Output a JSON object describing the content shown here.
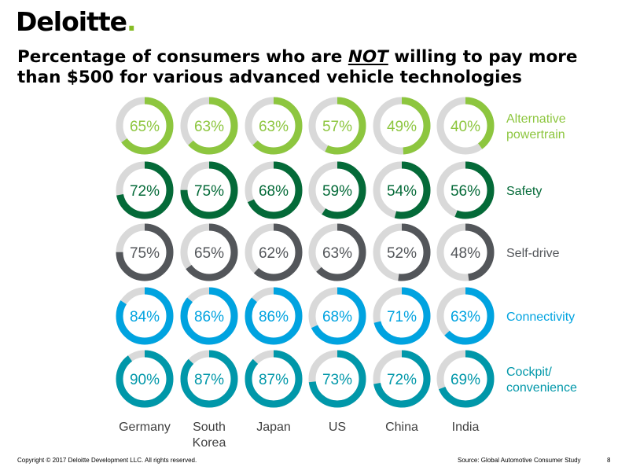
{
  "header": {
    "logo_text": "Deloitte",
    "logo_dot": ".",
    "title_part1": "Percentage of consumers who are ",
    "title_em": "NOT",
    "title_part2": " willing to pay more than $500 for various advanced vehicle technologies"
  },
  "footer": {
    "copyright": "Copyright © 2017 Deloitte Development LLC. All rights reserved.",
    "source": "Source: Global Automotive Consumer Study",
    "page": "8"
  },
  "colors": {
    "track": "#d9d9d9",
    "logo_dot": "#86bc25"
  },
  "chart_data": {
    "type": "donut-grid",
    "countries": [
      [
        "Germany"
      ],
      [
        "South",
        "Korea"
      ],
      [
        "Japan"
      ],
      [
        "US"
      ],
      [
        "China"
      ],
      [
        "India"
      ]
    ],
    "series": [
      {
        "name": [
          "Alternative",
          "powertrain"
        ],
        "color": "#8dc63f",
        "values": [
          65,
          63,
          63,
          57,
          49,
          40
        ]
      },
      {
        "name": [
          "Safety"
        ],
        "color": "#046a38",
        "values": [
          72,
          75,
          68,
          59,
          54,
          56
        ]
      },
      {
        "name": [
          "Self-drive"
        ],
        "color": "#53565a",
        "values": [
          75,
          65,
          62,
          63,
          52,
          48
        ]
      },
      {
        "name": [
          "Connectivity"
        ],
        "color": "#00a3e0",
        "values": [
          84,
          86,
          86,
          68,
          71,
          63
        ]
      },
      {
        "name": [
          "Cockpit/",
          "convenience"
        ],
        "color": "#0097a9",
        "values": [
          90,
          87,
          87,
          73,
          72,
          69
        ]
      }
    ],
    "unit": "%"
  }
}
